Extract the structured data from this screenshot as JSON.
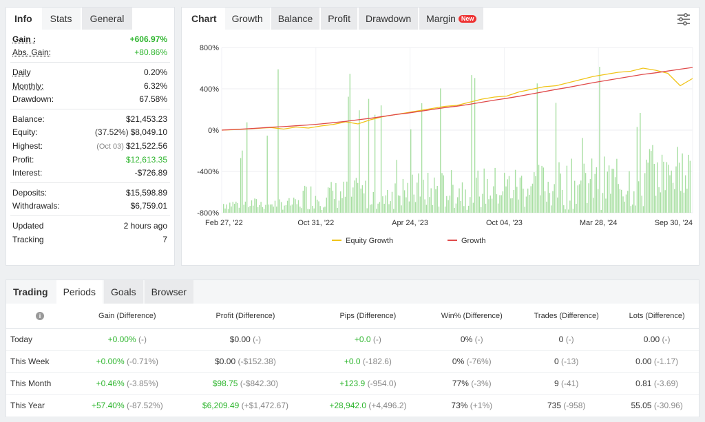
{
  "info_panel": {
    "tabs": [
      {
        "label": "Info"
      },
      {
        "label": "Stats"
      },
      {
        "label": "General"
      }
    ],
    "groups": [
      [
        {
          "label": "Gain :",
          "value": "+606.97%",
          "style": "green-bold",
          "labelstyle": "bold-ul"
        },
        {
          "label": "Abs. Gain:",
          "value": "+80.86%",
          "style": "green",
          "labelstyle": "ul"
        }
      ],
      [
        {
          "label": "Daily",
          "value": "0.20%",
          "labelstyle": "ul"
        },
        {
          "label": "Monthly:",
          "value": "6.32%",
          "labelstyle": "ul"
        },
        {
          "label": "Drawdown:",
          "value": "67.58%"
        }
      ],
      [
        {
          "label": "Balance:",
          "value": "$21,453.23"
        },
        {
          "label": "Equity:",
          "note": "(37.52%)",
          "notestyle": "dark",
          "value": "$8,049.10"
        },
        {
          "label": "Highest:",
          "note": "(Oct 03)",
          "value": "$21,522.56"
        },
        {
          "label": "Profit:",
          "value": "$12,613.35",
          "style": "green"
        },
        {
          "label": "Interest:",
          "value": "-$726.89"
        }
      ],
      [
        {
          "label": "Deposits:",
          "value": "$15,598.89"
        },
        {
          "label": "Withdrawals:",
          "value": "$6,759.01"
        }
      ],
      [
        {
          "label": "Updated",
          "value": "2 hours ago"
        },
        {
          "label": "Tracking",
          "value": "7"
        }
      ]
    ]
  },
  "chart_panel": {
    "tabs": [
      {
        "label": "Chart"
      },
      {
        "label": "Growth"
      },
      {
        "label": "Balance"
      },
      {
        "label": "Profit"
      },
      {
        "label": "Drawdown"
      },
      {
        "label": "Margin"
      }
    ],
    "new_badge": "New",
    "settings_icon": "sliders-icon"
  },
  "chart_data": {
    "type": "line",
    "y_ticks": [
      "800%",
      "400%",
      "0%",
      "-400%",
      "-800%"
    ],
    "ylim": [
      -800,
      800
    ],
    "x_ticks": [
      "Feb 27, '22",
      "Oct 31, '22",
      "Apr 24, '23",
      "Oct 04, '23",
      "Mar 28, '24",
      "Sep 30, '24"
    ],
    "series": [
      {
        "name": "Equity Growth",
        "color": "#f0c419",
        "values": [
          0,
          5,
          10,
          18,
          25,
          10,
          30,
          20,
          40,
          55,
          80,
          60,
          100,
          130,
          150,
          170,
          190,
          210,
          230,
          240,
          270,
          300,
          320,
          330,
          370,
          395,
          420,
          430,
          460,
          490,
          520,
          540,
          560,
          570,
          600,
          580,
          550,
          430,
          500
        ]
      },
      {
        "name": "Growth",
        "color": "#e04a4a",
        "values": [
          0,
          6,
          12,
          20,
          28,
          34,
          42,
          50,
          60,
          72,
          85,
          100,
          115,
          132,
          150,
          165,
          182,
          200,
          218,
          232,
          250,
          270,
          290,
          308,
          328,
          350,
          372,
          395,
          415,
          437,
          460,
          480,
          500,
          520,
          540,
          555,
          572,
          590,
          607
        ]
      }
    ],
    "bars_color": "#a8dfa2",
    "legend": [
      {
        "label": "Equity Growth",
        "color": "#f0c419"
      },
      {
        "label": "Growth",
        "color": "#e04a4a"
      }
    ],
    "legend_position": "bottom",
    "grid": true
  },
  "periods_panel": {
    "tabs": [
      {
        "label": "Trading"
      },
      {
        "label": "Periods"
      },
      {
        "label": "Goals"
      },
      {
        "label": "Browser"
      }
    ],
    "info_icon": "i",
    "columns": [
      "Gain (Difference)",
      "Profit (Difference)",
      "Pips (Difference)",
      "Win% (Difference)",
      "Trades (Difference)",
      "Lots (Difference)"
    ],
    "rows": [
      {
        "label": "Today",
        "cells": [
          {
            "main": "+0.00%",
            "diff": "(-)",
            "green": true
          },
          {
            "main": "$0.00",
            "diff": "(-)",
            "green": false
          },
          {
            "main": "+0.0",
            "diff": "(-)",
            "green": true
          },
          {
            "main": "0%",
            "diff": "(-)",
            "green": false
          },
          {
            "main": "0",
            "diff": "(-)",
            "green": false
          },
          {
            "main": "0.00",
            "diff": "(-)",
            "green": false
          }
        ]
      },
      {
        "label": "This Week",
        "cells": [
          {
            "main": "+0.00%",
            "diff": "(-0.71%)",
            "green": true
          },
          {
            "main": "$0.00",
            "diff": "(-$152.38)",
            "green": false
          },
          {
            "main": "+0.0",
            "diff": "(-182.6)",
            "green": true
          },
          {
            "main": "0%",
            "diff": "(-76%)",
            "green": false
          },
          {
            "main": "0",
            "diff": "(-13)",
            "green": false
          },
          {
            "main": "0.00",
            "diff": "(-1.17)",
            "green": false
          }
        ]
      },
      {
        "label": "This Month",
        "cells": [
          {
            "main": "+0.46%",
            "diff": "(-3.85%)",
            "green": true
          },
          {
            "main": "$98.75",
            "diff": "(-$842.30)",
            "green": true
          },
          {
            "main": "+123.9",
            "diff": "(-954.0)",
            "green": true
          },
          {
            "main": "77%",
            "diff": "(-3%)",
            "green": false
          },
          {
            "main": "9",
            "diff": "(-41)",
            "green": false
          },
          {
            "main": "0.81",
            "diff": "(-3.69)",
            "green": false
          }
        ]
      },
      {
        "label": "This Year",
        "cells": [
          {
            "main": "+57.40%",
            "diff": "(-87.52%)",
            "green": true
          },
          {
            "main": "$6,209.49",
            "diff": "(+$1,472.67)",
            "green": true
          },
          {
            "main": "+28,942.0",
            "diff": "(+4,496.2)",
            "green": true
          },
          {
            "main": "73%",
            "diff": "(+1%)",
            "green": false
          },
          {
            "main": "735",
            "diff": "(-958)",
            "green": false
          },
          {
            "main": "55.05",
            "diff": "(-30.96)",
            "green": false
          }
        ]
      }
    ]
  }
}
